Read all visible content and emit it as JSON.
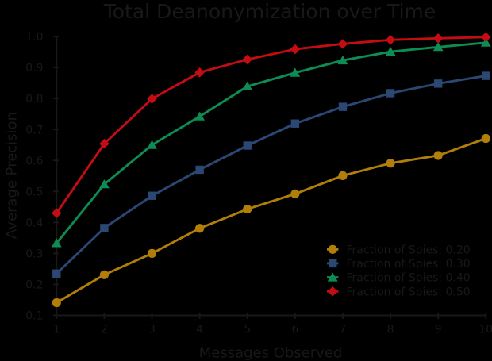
{
  "figure": {
    "title": "Total Deanonymization over Time",
    "xlabel": "Messages Observed",
    "ylabel": "Average Precision",
    "background_color": "#000000",
    "ink_color": "#181818"
  },
  "axes": {
    "xtick_labels": [
      "1",
      "2",
      "3",
      "4",
      "5",
      "6",
      "7",
      "8",
      "9",
      "10"
    ],
    "ytick_labels": [
      "0.1",
      "0.2",
      "0.3",
      "0.4",
      "0.5",
      "0.6",
      "0.7",
      "0.8",
      "0.9",
      "1.0"
    ]
  },
  "legend": {
    "items": [
      {
        "label": "Fraction of Spies: 0.20",
        "marker": "circle",
        "color": "#B27E0A"
      },
      {
        "label": "Fraction of Spies: 0.30",
        "marker": "square",
        "color": "#2B4874"
      },
      {
        "label": "Fraction of Spies: 0.40",
        "marker": "triangle",
        "color": "#0D8C53"
      },
      {
        "label": "Fraction of Spies: 0.50",
        "marker": "diamond",
        "color": "#C20D13"
      }
    ]
  },
  "chart_data": {
    "type": "line",
    "title": "Total Deanonymization over Time",
    "xlabel": "Messages Observed",
    "ylabel": "Average Precision",
    "x": [
      1,
      2,
      3,
      4,
      5,
      6,
      7,
      8,
      9,
      10
    ],
    "xlim": [
      1,
      10
    ],
    "ylim": [
      0.1,
      1.0
    ],
    "xticks": [
      1,
      2,
      3,
      4,
      5,
      6,
      7,
      8,
      9,
      10
    ],
    "yticks": [
      0.1,
      0.2,
      0.3,
      0.4,
      0.5,
      0.6,
      0.7,
      0.8,
      0.9,
      1.0
    ],
    "grid": false,
    "legend_position": "lower right",
    "series": [
      {
        "name": "Fraction of Spies: 0.20",
        "color": "#B27E0A",
        "marker": "circle",
        "values": [
          0.141,
          0.231,
          0.3,
          0.381,
          0.443,
          0.492,
          0.551,
          0.591,
          0.616,
          0.671
        ]
      },
      {
        "name": "Fraction of Spies: 0.30",
        "color": "#2B4874",
        "marker": "square",
        "values": [
          0.235,
          0.382,
          0.486,
          0.57,
          0.648,
          0.719,
          0.773,
          0.817,
          0.848,
          0.873
        ]
      },
      {
        "name": "Fraction of Spies: 0.40",
        "color": "#0D8C53",
        "marker": "triangle",
        "values": [
          0.333,
          0.523,
          0.65,
          0.742,
          0.839,
          0.883,
          0.923,
          0.951,
          0.966,
          0.98
        ]
      },
      {
        "name": "Fraction of Spies: 0.50",
        "color": "#C20D13",
        "marker": "diamond",
        "values": [
          0.43,
          0.654,
          0.799,
          0.884,
          0.926,
          0.959,
          0.976,
          0.989,
          0.994,
          0.998
        ]
      }
    ]
  }
}
